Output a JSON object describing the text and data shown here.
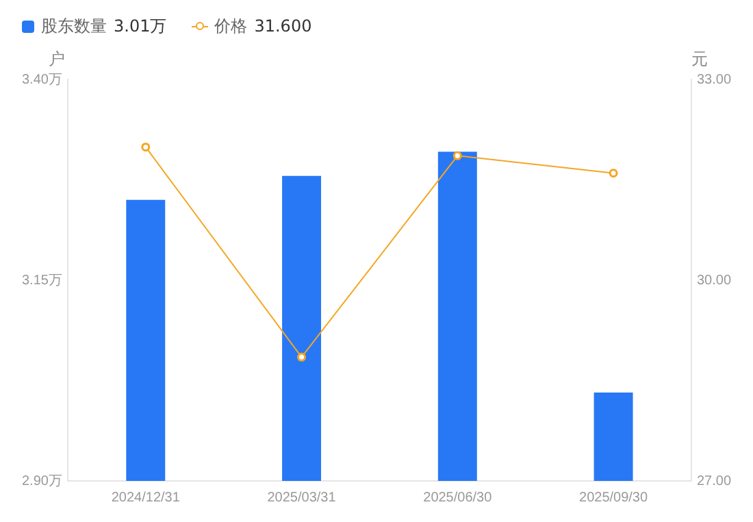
{
  "chart_data": {
    "type": "bar",
    "categories": [
      "2024/12/31",
      "2025/03/31",
      "2025/06/30",
      "2025/09/30"
    ],
    "series": [
      {
        "name": "股东数量",
        "color": "#2878f5",
        "values": [
          3.25,
          3.28,
          3.31,
          3.01
        ]
      },
      {
        "name": "价格",
        "type": "line",
        "axis": "y2",
        "color": "#f5a623",
        "values": [
          31.99,
          28.85,
          31.86,
          31.6
        ]
      }
    ],
    "ylabel": "户",
    "y2label": "元",
    "ylim": [
      2.9,
      3.4
    ],
    "yticks": [
      {
        "value": 2.9,
        "label": "2.90万"
      },
      {
        "value": 3.15,
        "label": "3.15万"
      },
      {
        "value": 3.4,
        "label": "3.40万"
      }
    ],
    "y2lim": [
      27,
      33
    ],
    "y2ticks": [
      {
        "value": 27,
        "label": "27.00"
      },
      {
        "value": 30,
        "label": "30.00"
      },
      {
        "value": 33,
        "label": "33.00"
      }
    ],
    "annotations": [
      "3.01万",
      "31.600"
    ],
    "legend": "top left",
    "marker": "circle",
    "grid": false
  }
}
